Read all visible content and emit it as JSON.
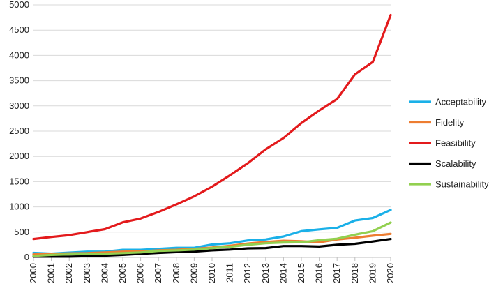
{
  "chart_data": {
    "type": "line",
    "title": "",
    "xlabel": "",
    "ylabel": "",
    "ylim": [
      0,
      5000
    ],
    "yticks": [
      0,
      500,
      1000,
      1500,
      2000,
      2500,
      3000,
      3500,
      4000,
      4500,
      5000
    ],
    "grid": "horizontal",
    "legend_position": "right",
    "x": [
      "2000",
      "2001",
      "2002",
      "2003",
      "2004",
      "2005",
      "2006",
      "2007",
      "2008",
      "2009",
      "2010",
      "2011",
      "2012",
      "2013",
      "2014",
      "2015",
      "2016",
      "2017",
      "2018",
      "2019",
      "2020"
    ],
    "series": [
      {
        "name": "Acceptability",
        "color": "#1ab0e8",
        "values": [
          90,
          75,
          95,
          115,
          115,
          150,
          150,
          170,
          190,
          190,
          255,
          280,
          335,
          355,
          415,
          520,
          555,
          585,
          730,
          780,
          940
        ]
      },
      {
        "name": "Fidelity",
        "color": "#ed7d31",
        "values": [
          60,
          70,
          80,
          85,
          100,
          115,
          120,
          140,
          150,
          170,
          195,
          230,
          275,
          305,
          330,
          320,
          300,
          355,
          390,
          430,
          465
        ]
      },
      {
        "name": "Feasibility",
        "color": "#e31a1c",
        "values": [
          365,
          405,
          440,
          500,
          560,
          695,
          770,
          900,
          1050,
          1210,
          1400,
          1625,
          1865,
          2140,
          2365,
          2660,
          2910,
          3135,
          3625,
          3870,
          4800
        ]
      },
      {
        "name": "Scalability",
        "color": "#000000",
        "values": [
          15,
          15,
          15,
          25,
          35,
          50,
          70,
          90,
          105,
          115,
          140,
          155,
          180,
          185,
          225,
          225,
          215,
          250,
          270,
          315,
          365
        ]
      },
      {
        "name": "Sustainability",
        "color": "#92d050",
        "values": [
          30,
          50,
          60,
          65,
          75,
          85,
          100,
          130,
          140,
          155,
          185,
          210,
          250,
          280,
          295,
          300,
          340,
          370,
          450,
          520,
          690
        ]
      }
    ]
  }
}
